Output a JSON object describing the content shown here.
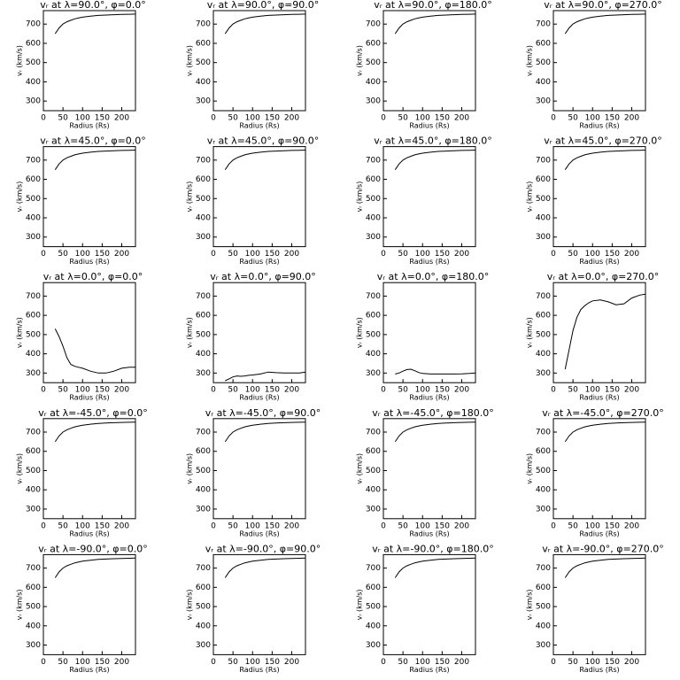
{
  "chart_data": [
    {
      "type": "line",
      "title": "vᵣ at λ=90.0°, φ=0.0°",
      "xlabel": "Radius (Rs)",
      "ylabel": "vᵣ (km/s)",
      "x": [
        30,
        40,
        50,
        60,
        70,
        80,
        90,
        100,
        120,
        140,
        160,
        180,
        200,
        220,
        235
      ],
      "values": [
        650,
        680,
        700,
        712,
        720,
        727,
        732,
        736,
        741,
        745,
        747,
        749,
        750,
        751,
        752
      ],
      "color": "#000000",
      "xlim": [
        0,
        235
      ],
      "ylim": [
        250,
        770
      ],
      "xticks": [
        0,
        50,
        100,
        150,
        200
      ],
      "yticks": [
        300,
        400,
        500,
        600,
        700
      ]
    },
    {
      "type": "line",
      "title": "vᵣ at λ=90.0°, φ=90.0°",
      "xlabel": "Radius (Rs)",
      "ylabel": "vᵣ (km/s)",
      "x": [
        30,
        40,
        50,
        60,
        70,
        80,
        90,
        100,
        120,
        140,
        160,
        180,
        200,
        220,
        235
      ],
      "values": [
        650,
        680,
        700,
        712,
        720,
        727,
        732,
        736,
        741,
        745,
        747,
        749,
        750,
        751,
        752
      ],
      "color": "#000000",
      "xlim": [
        0,
        235
      ],
      "ylim": [
        250,
        770
      ],
      "xticks": [
        0,
        50,
        100,
        150,
        200
      ],
      "yticks": [
        300,
        400,
        500,
        600,
        700
      ]
    },
    {
      "type": "line",
      "title": "vᵣ at λ=90.0°, φ=180.0°",
      "xlabel": "Radius (Rs)",
      "ylabel": "vᵣ (km/s)",
      "x": [
        30,
        40,
        50,
        60,
        70,
        80,
        90,
        100,
        120,
        140,
        160,
        180,
        200,
        220,
        235
      ],
      "values": [
        650,
        680,
        700,
        712,
        720,
        727,
        732,
        736,
        741,
        745,
        747,
        749,
        750,
        751,
        752
      ],
      "color": "#000000",
      "xlim": [
        0,
        235
      ],
      "ylim": [
        250,
        770
      ],
      "xticks": [
        0,
        50,
        100,
        150,
        200
      ],
      "yticks": [
        300,
        400,
        500,
        600,
        700
      ]
    },
    {
      "type": "line",
      "title": "vᵣ at λ=90.0°, φ=270.0°",
      "xlabel": "Radius (Rs)",
      "ylabel": "vᵣ (km/s)",
      "x": [
        30,
        40,
        50,
        60,
        70,
        80,
        90,
        100,
        120,
        140,
        160,
        180,
        200,
        220,
        235
      ],
      "values": [
        650,
        680,
        700,
        712,
        720,
        727,
        732,
        736,
        741,
        745,
        747,
        749,
        750,
        751,
        752
      ],
      "color": "#000000",
      "xlim": [
        0,
        235
      ],
      "ylim": [
        250,
        770
      ],
      "xticks": [
        0,
        50,
        100,
        150,
        200
      ],
      "yticks": [
        300,
        400,
        500,
        600,
        700
      ]
    },
    {
      "type": "line",
      "title": "vᵣ at λ=45.0°, φ=0.0°",
      "xlabel": "Radius (Rs)",
      "ylabel": "vᵣ (km/s)",
      "x": [
        30,
        40,
        50,
        60,
        70,
        80,
        90,
        100,
        120,
        140,
        160,
        180,
        200,
        220,
        235
      ],
      "values": [
        650,
        680,
        700,
        712,
        720,
        727,
        732,
        736,
        741,
        745,
        747,
        749,
        750,
        751,
        752
      ],
      "color": "#000000",
      "xlim": [
        0,
        235
      ],
      "ylim": [
        250,
        770
      ],
      "xticks": [
        0,
        50,
        100,
        150,
        200
      ],
      "yticks": [
        300,
        400,
        500,
        600,
        700
      ]
    },
    {
      "type": "line",
      "title": "vᵣ at λ=45.0°, φ=90.0°",
      "xlabel": "Radius (Rs)",
      "ylabel": "vᵣ (km/s)",
      "x": [
        30,
        40,
        50,
        60,
        70,
        80,
        90,
        100,
        120,
        140,
        160,
        180,
        200,
        220,
        235
      ],
      "values": [
        650,
        680,
        700,
        712,
        720,
        727,
        732,
        736,
        741,
        745,
        747,
        749,
        750,
        751,
        752
      ],
      "color": "#000000",
      "xlim": [
        0,
        235
      ],
      "ylim": [
        250,
        770
      ],
      "xticks": [
        0,
        50,
        100,
        150,
        200
      ],
      "yticks": [
        300,
        400,
        500,
        600,
        700
      ]
    },
    {
      "type": "line",
      "title": "vᵣ at λ=45.0°, φ=180.0°",
      "xlabel": "Radius (Rs)",
      "ylabel": "vᵣ (km/s)",
      "x": [
        30,
        40,
        50,
        60,
        70,
        80,
        90,
        100,
        120,
        140,
        160,
        180,
        200,
        220,
        235
      ],
      "values": [
        650,
        680,
        700,
        712,
        720,
        727,
        732,
        736,
        741,
        745,
        747,
        749,
        750,
        751,
        752
      ],
      "color": "#000000",
      "xlim": [
        0,
        235
      ],
      "ylim": [
        250,
        770
      ],
      "xticks": [
        0,
        50,
        100,
        150,
        200
      ],
      "yticks": [
        300,
        400,
        500,
        600,
        700
      ]
    },
    {
      "type": "line",
      "title": "vᵣ at λ=45.0°, φ=270.0°",
      "xlabel": "Radius (Rs)",
      "ylabel": "vᵣ (km/s)",
      "x": [
        30,
        40,
        50,
        60,
        70,
        80,
        90,
        100,
        120,
        140,
        160,
        180,
        200,
        220,
        235
      ],
      "values": [
        650,
        680,
        700,
        712,
        720,
        727,
        732,
        736,
        741,
        745,
        747,
        749,
        750,
        751,
        752
      ],
      "color": "#000000",
      "xlim": [
        0,
        235
      ],
      "ylim": [
        250,
        770
      ],
      "xticks": [
        0,
        50,
        100,
        150,
        200
      ],
      "yticks": [
        300,
        400,
        500,
        600,
        700
      ]
    },
    {
      "type": "line",
      "title": "vᵣ at λ=0.0°, φ=0.0°",
      "xlabel": "Radius (Rs)",
      "ylabel": "vᵣ (km/s)",
      "x": [
        30,
        40,
        50,
        60,
        70,
        80,
        90,
        100,
        120,
        140,
        160,
        180,
        200,
        220,
        235
      ],
      "values": [
        530,
        490,
        440,
        380,
        345,
        335,
        330,
        325,
        310,
        300,
        300,
        310,
        325,
        330,
        330
      ],
      "color": "#000000",
      "xlim": [
        0,
        235
      ],
      "ylim": [
        250,
        770
      ],
      "xticks": [
        0,
        50,
        100,
        150,
        200
      ],
      "yticks": [
        300,
        400,
        500,
        600,
        700
      ]
    },
    {
      "type": "line",
      "title": "vᵣ at λ=0.0°, φ=90.0°",
      "xlabel": "Radius (Rs)",
      "ylabel": "vᵣ (km/s)",
      "x": [
        30,
        40,
        50,
        60,
        70,
        80,
        90,
        100,
        120,
        140,
        160,
        180,
        200,
        220,
        235
      ],
      "values": [
        260,
        270,
        280,
        285,
        283,
        285,
        288,
        290,
        295,
        305,
        302,
        300,
        300,
        300,
        305
      ],
      "color": "#000000",
      "xlim": [
        0,
        235
      ],
      "ylim": [
        250,
        770
      ],
      "xticks": [
        0,
        50,
        100,
        150,
        200
      ],
      "yticks": [
        300,
        400,
        500,
        600,
        700
      ]
    },
    {
      "type": "line",
      "title": "vᵣ at λ=0.0°, φ=180.0°",
      "xlabel": "Radius (Rs)",
      "ylabel": "vᵣ (km/s)",
      "x": [
        30,
        40,
        50,
        60,
        70,
        80,
        90,
        100,
        120,
        140,
        160,
        180,
        200,
        220,
        235
      ],
      "values": [
        295,
        300,
        310,
        318,
        320,
        312,
        303,
        298,
        295,
        295,
        295,
        295,
        296,
        298,
        300
      ],
      "color": "#000000",
      "xlim": [
        0,
        235
      ],
      "ylim": [
        250,
        770
      ],
      "xticks": [
        0,
        50,
        100,
        150,
        200
      ],
      "yticks": [
        300,
        400,
        500,
        600,
        700
      ]
    },
    {
      "type": "line",
      "title": "vᵣ at λ=0.0°, φ=270.0°",
      "xlabel": "Radius (Rs)",
      "ylabel": "vᵣ (km/s)",
      "x": [
        30,
        40,
        50,
        60,
        70,
        80,
        90,
        100,
        120,
        140,
        160,
        180,
        200,
        220,
        235
      ],
      "values": [
        320,
        420,
        520,
        590,
        630,
        650,
        665,
        675,
        680,
        670,
        655,
        660,
        690,
        705,
        710
      ],
      "color": "#000000",
      "xlim": [
        0,
        235
      ],
      "ylim": [
        250,
        770
      ],
      "xticks": [
        0,
        50,
        100,
        150,
        200
      ],
      "yticks": [
        300,
        400,
        500,
        600,
        700
      ]
    },
    {
      "type": "line",
      "title": "vᵣ at λ=-45.0°, φ=0.0°",
      "xlabel": "Radius (Rs)",
      "ylabel": "vᵣ (km/s)",
      "x": [
        30,
        40,
        50,
        60,
        70,
        80,
        90,
        100,
        120,
        140,
        160,
        180,
        200,
        220,
        235
      ],
      "values": [
        650,
        680,
        700,
        712,
        720,
        727,
        732,
        736,
        741,
        745,
        747,
        749,
        750,
        751,
        752
      ],
      "color": "#000000",
      "xlim": [
        0,
        235
      ],
      "ylim": [
        250,
        770
      ],
      "xticks": [
        0,
        50,
        100,
        150,
        200
      ],
      "yticks": [
        300,
        400,
        500,
        600,
        700
      ]
    },
    {
      "type": "line",
      "title": "vᵣ at λ=-45.0°, φ=90.0°",
      "xlabel": "Radius (Rs)",
      "ylabel": "vᵣ (km/s)",
      "x": [
        30,
        40,
        50,
        60,
        70,
        80,
        90,
        100,
        120,
        140,
        160,
        180,
        200,
        220,
        235
      ],
      "values": [
        650,
        680,
        700,
        712,
        720,
        727,
        732,
        736,
        741,
        745,
        747,
        749,
        750,
        751,
        752
      ],
      "color": "#000000",
      "xlim": [
        0,
        235
      ],
      "ylim": [
        250,
        770
      ],
      "xticks": [
        0,
        50,
        100,
        150,
        200
      ],
      "yticks": [
        300,
        400,
        500,
        600,
        700
      ]
    },
    {
      "type": "line",
      "title": "vᵣ at λ=-45.0°, φ=180.0°",
      "xlabel": "Radius (Rs)",
      "ylabel": "vᵣ (km/s)",
      "x": [
        30,
        40,
        50,
        60,
        70,
        80,
        90,
        100,
        120,
        140,
        160,
        180,
        200,
        220,
        235
      ],
      "values": [
        650,
        680,
        700,
        712,
        720,
        727,
        732,
        736,
        741,
        745,
        747,
        749,
        750,
        751,
        752
      ],
      "color": "#000000",
      "xlim": [
        0,
        235
      ],
      "ylim": [
        250,
        770
      ],
      "xticks": [
        0,
        50,
        100,
        150,
        200
      ],
      "yticks": [
        300,
        400,
        500,
        600,
        700
      ]
    },
    {
      "type": "line",
      "title": "vᵣ at λ=-45.0°, φ=270.0°",
      "xlabel": "Radius (Rs)",
      "ylabel": "vᵣ (km/s)",
      "x": [
        30,
        40,
        50,
        60,
        70,
        80,
        90,
        100,
        120,
        140,
        160,
        180,
        200,
        220,
        235
      ],
      "values": [
        650,
        680,
        700,
        712,
        720,
        727,
        732,
        736,
        741,
        745,
        747,
        749,
        750,
        751,
        752
      ],
      "color": "#000000",
      "xlim": [
        0,
        235
      ],
      "ylim": [
        250,
        770
      ],
      "xticks": [
        0,
        50,
        100,
        150,
        200
      ],
      "yticks": [
        300,
        400,
        500,
        600,
        700
      ]
    },
    {
      "type": "line",
      "title": "vᵣ at λ=-90.0°, φ=0.0°",
      "xlabel": "Radius (Rs)",
      "ylabel": "vᵣ (km/s)",
      "x": [
        30,
        40,
        50,
        60,
        70,
        80,
        90,
        100,
        120,
        140,
        160,
        180,
        200,
        220,
        235
      ],
      "values": [
        650,
        680,
        700,
        712,
        720,
        727,
        732,
        736,
        741,
        745,
        747,
        749,
        750,
        751,
        752
      ],
      "color": "#000000",
      "xlim": [
        0,
        235
      ],
      "ylim": [
        250,
        770
      ],
      "xticks": [
        0,
        50,
        100,
        150,
        200
      ],
      "yticks": [
        300,
        400,
        500,
        600,
        700
      ]
    },
    {
      "type": "line",
      "title": "vᵣ at λ=-90.0°, φ=90.0°",
      "xlabel": "Radius (Rs)",
      "ylabel": "vᵣ (km/s)",
      "x": [
        30,
        40,
        50,
        60,
        70,
        80,
        90,
        100,
        120,
        140,
        160,
        180,
        200,
        220,
        235
      ],
      "values": [
        650,
        680,
        700,
        712,
        720,
        727,
        732,
        736,
        741,
        745,
        747,
        749,
        750,
        751,
        752
      ],
      "color": "#000000",
      "xlim": [
        0,
        235
      ],
      "ylim": [
        250,
        770
      ],
      "xticks": [
        0,
        50,
        100,
        150,
        200
      ],
      "yticks": [
        300,
        400,
        500,
        600,
        700
      ]
    },
    {
      "type": "line",
      "title": "vᵣ at λ=-90.0°, φ=180.0°",
      "xlabel": "Radius (Rs)",
      "ylabel": "vᵣ (km/s)",
      "x": [
        30,
        40,
        50,
        60,
        70,
        80,
        90,
        100,
        120,
        140,
        160,
        180,
        200,
        220,
        235
      ],
      "values": [
        650,
        680,
        700,
        712,
        720,
        727,
        732,
        736,
        741,
        745,
        747,
        749,
        750,
        751,
        752
      ],
      "color": "#000000",
      "xlim": [
        0,
        235
      ],
      "ylim": [
        250,
        770
      ],
      "xticks": [
        0,
        50,
        100,
        150,
        200
      ],
      "yticks": [
        300,
        400,
        500,
        600,
        700
      ]
    },
    {
      "type": "line",
      "title": "vᵣ at λ=-90.0°, φ=270.0°",
      "xlabel": "Radius (Rs)",
      "ylabel": "vᵣ (km/s)",
      "x": [
        30,
        40,
        50,
        60,
        70,
        80,
        90,
        100,
        120,
        140,
        160,
        180,
        200,
        220,
        235
      ],
      "values": [
        650,
        680,
        700,
        712,
        720,
        727,
        732,
        736,
        741,
        745,
        747,
        749,
        750,
        751,
        752
      ],
      "color": "#000000",
      "xlim": [
        0,
        235
      ],
      "ylim": [
        250,
        770
      ],
      "xticks": [
        0,
        50,
        100,
        150,
        200
      ],
      "yticks": [
        300,
        400,
        500,
        600,
        700
      ]
    }
  ]
}
